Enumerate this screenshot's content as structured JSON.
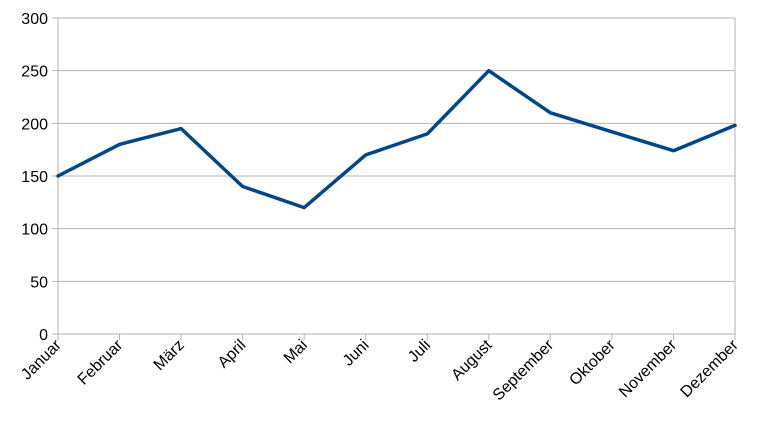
{
  "chart_data": {
    "type": "line",
    "title": "",
    "xlabel": "",
    "ylabel": "",
    "categories": [
      "Januar",
      "Februar",
      "März",
      "April",
      "Mai",
      "Juni",
      "Juli",
      "August",
      "September",
      "Oktober",
      "November",
      "Dezember"
    ],
    "series": [
      {
        "values": [
          150,
          180,
          195,
          140,
          120,
          170,
          190,
          250,
          210,
          192,
          174,
          198
        ],
        "color": "#004586"
      }
    ],
    "ylim": [
      0,
      300
    ],
    "yticks": [
      0,
      50,
      100,
      150,
      200,
      250,
      300
    ],
    "grid": "horizontal",
    "legend": "none",
    "grid_color": "#b3b3b3"
  }
}
